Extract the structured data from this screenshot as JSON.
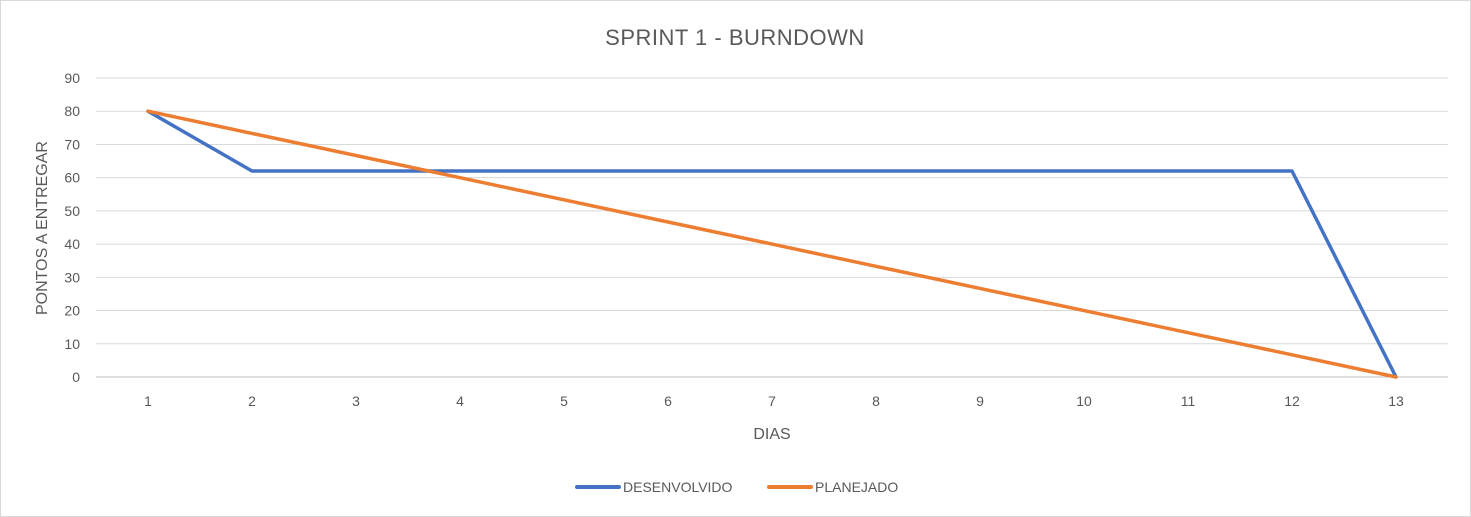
{
  "chart_data": {
    "type": "line",
    "title": "SPRINT 1 - BURNDOWN",
    "xlabel": "DIAS",
    "ylabel": "PONTOS A ENTREGAR",
    "categories": [
      "1",
      "2",
      "3",
      "4",
      "5",
      "6",
      "7",
      "8",
      "9",
      "10",
      "11",
      "12",
      "13"
    ],
    "ylim": [
      0,
      90
    ],
    "yticks": [
      "0",
      "10",
      "20",
      "30",
      "40",
      "50",
      "60",
      "70",
      "80",
      "90"
    ],
    "grid": true,
    "legend_position": "bottom",
    "series": [
      {
        "name": "DESENVOLVIDO",
        "color": "#4472c4",
        "values": [
          80,
          62,
          62,
          62,
          62,
          62,
          62,
          62,
          62,
          62,
          62,
          62,
          0
        ]
      },
      {
        "name": "PLANEJADO",
        "color": "#ed7d31",
        "values": [
          80,
          73.33,
          66.67,
          60,
          53.33,
          46.67,
          40,
          33.33,
          26.67,
          20,
          13.33,
          6.67,
          0
        ]
      }
    ]
  }
}
